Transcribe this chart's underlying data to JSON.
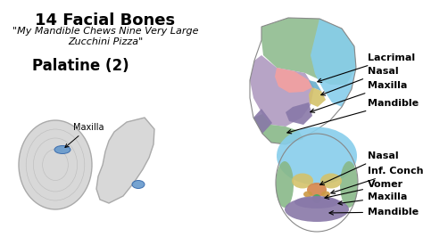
{
  "background_color": "#ffffff",
  "title_line1": "14 Facial Bones",
  "title_line2": "\"My Mandible Chews Nine Very Large",
  "title_line3": "Zucchini Pizza\"",
  "subtitle": "Palatine (2)",
  "maxilla_label": "Maxilla",
  "right_top_labels": [
    "Lacrimal",
    "Nasal",
    "Maxilla",
    "Mandible"
  ],
  "right_bottom_labels": [
    "Nasal",
    "Inf. Concha",
    "Vomer",
    "Maxilla",
    "Mandible"
  ],
  "fig_width": 4.74,
  "fig_height": 2.66,
  "dpi": 100,
  "label_fontsize": 8,
  "title_fontsize": 13,
  "sub_fontsize": 8,
  "palatine_fontsize": 12,
  "colors": {
    "green": "#8fbc8f",
    "blue": "#87ceeb",
    "purple": "#b09ac0",
    "pink": "#f4a0a0",
    "yellow": "#d4c26a",
    "lacrimal": "#6aaecc",
    "mandible_green": "#88b888",
    "jaw_purple": "#8878a8",
    "orange": "#d4844a",
    "vomer_green": "#44aa66",
    "concha": "#cc9944",
    "gray": "#d8d8d8",
    "gray_edge": "#aaaaaa",
    "palatine_blue": "#6699cc",
    "palatine_blue_edge": "#3366aa"
  }
}
